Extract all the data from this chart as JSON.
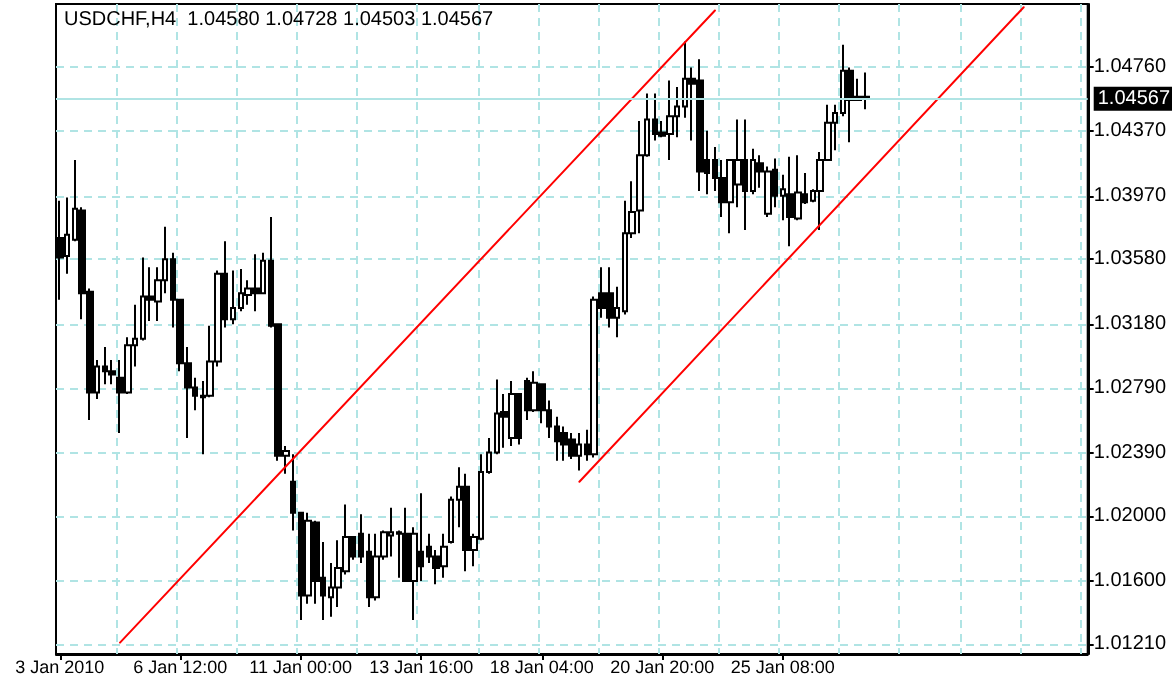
{
  "chart_data": {
    "type": "candlestick",
    "title": "USDCHF,H4  1.04580 1.04728 1.04503 1.04567",
    "categories": [
      "3 Jan 2010",
      null,
      null,
      null,
      null,
      null,
      null,
      null,
      null,
      null,
      null,
      null,
      null,
      null,
      null,
      null,
      "6 Jan 12:00",
      null,
      null,
      null,
      null,
      null,
      null,
      null,
      null,
      null,
      null,
      null,
      null,
      null,
      null,
      null,
      "11 Jan 00:00",
      null,
      null,
      null,
      null,
      null,
      null,
      null,
      null,
      null,
      null,
      null,
      null,
      null,
      null,
      null,
      "13 Jan 16:00",
      null,
      null,
      null,
      null,
      null,
      null,
      null,
      null,
      null,
      null,
      null,
      null,
      null,
      null,
      null,
      "18 Jan 04:00",
      null,
      null,
      null,
      null,
      null,
      null,
      null,
      null,
      null,
      null,
      null,
      null,
      null,
      null,
      null,
      "20 Jan 20:00",
      null,
      null,
      null,
      null,
      null,
      null,
      null,
      null,
      null,
      null,
      null,
      null,
      null,
      null,
      null,
      "25 Jan 08:00",
      null,
      null,
      null,
      null,
      null,
      null,
      null,
      null,
      null,
      null,
      null,
      null,
      null,
      null,
      null,
      null,
      null,
      null,
      null,
      null,
      null,
      null,
      null,
      null,
      null,
      null,
      null,
      null,
      null,
      null,
      null,
      null,
      null,
      null,
      null,
      null,
      null,
      null,
      null,
      null
    ],
    "ohlc": [
      [
        1.0371,
        1.0394,
        1.0333,
        1.0359
      ],
      [
        1.036,
        1.0396,
        1.0349,
        1.0373
      ],
      [
        1.037,
        1.0419,
        1.0369,
        1.0389
      ],
      [
        1.0388,
        1.039,
        1.0321,
        1.0337
      ],
      [
        1.0338,
        1.034,
        1.0259,
        1.0276
      ],
      [
        1.0276,
        1.0296,
        1.0272,
        1.0292
      ],
      [
        1.0292,
        1.0304,
        1.0281,
        1.0289
      ],
      [
        1.0289,
        1.0296,
        1.0281,
        1.0287
      ],
      [
        1.0285,
        1.0296,
        1.0251,
        1.0276
      ],
      [
        1.0276,
        1.031,
        1.0275,
        1.0305
      ],
      [
        1.0305,
        1.033,
        1.0292,
        1.0309
      ],
      [
        1.0309,
        1.0359,
        1.0308,
        1.0335
      ],
      [
        1.0335,
        1.0353,
        1.032,
        1.0333
      ],
      [
        1.0332,
        1.0353,
        1.032,
        1.0345
      ],
      [
        1.0345,
        1.0378,
        1.0337,
        1.0358
      ],
      [
        1.0358,
        1.0362,
        1.0316,
        1.0333
      ],
      [
        1.0333,
        1.0333,
        1.0289,
        1.0294
      ],
      [
        1.0294,
        1.0304,
        1.0248,
        1.0279
      ],
      [
        1.0279,
        1.0285,
        1.0265,
        1.0274
      ],
      [
        1.0274,
        1.0283,
        1.0238,
        1.0273
      ],
      [
        1.0274,
        1.0317,
        1.0273,
        1.0295
      ],
      [
        1.0295,
        1.0351,
        1.0292,
        1.0349
      ],
      [
        1.0349,
        1.0369,
        1.0316,
        1.0321
      ],
      [
        1.0321,
        1.0351,
        1.0318,
        1.0328
      ],
      [
        1.0328,
        1.0352,
        1.0326,
        1.0337
      ],
      [
        1.0336,
        1.0345,
        1.033,
        1.034
      ],
      [
        1.034,
        1.0361,
        1.0326,
        1.0337
      ],
      [
        1.0337,
        1.0362,
        1.0337,
        1.0357
      ],
      [
        1.0357,
        1.0384,
        1.0316,
        1.0317
      ],
      [
        1.0318,
        1.0318,
        1.0234,
        1.0237
      ],
      [
        1.0237,
        1.0243,
        1.0226,
        1.024
      ],
      [
        1.0221,
        1.0238,
        1.0191,
        1.0202
      ],
      [
        1.0202,
        1.0202,
        1.0136,
        1.0151
      ],
      [
        1.0151,
        1.0202,
        1.0146,
        1.0197
      ],
      [
        1.0196,
        1.0197,
        1.0146,
        1.016
      ],
      [
        1.0162,
        1.0184,
        1.0136,
        1.0151
      ],
      [
        1.015,
        1.0171,
        1.0138,
        1.0156
      ],
      [
        1.0156,
        1.0185,
        1.0144,
        1.0168
      ],
      [
        1.0166,
        1.0207,
        1.0164,
        1.0187
      ],
      [
        1.0187,
        1.0187,
        1.0173,
        1.0175
      ],
      [
        1.0189,
        1.0201,
        1.0171,
        1.0175
      ],
      [
        1.0178,
        1.0189,
        1.0144,
        1.015
      ],
      [
        1.015,
        1.0189,
        1.0148,
        1.0175
      ],
      [
        1.0175,
        1.0191,
        1.0173,
        1.019
      ],
      [
        1.0188,
        1.0205,
        1.0175,
        1.019
      ],
      [
        1.0189,
        1.0191,
        1.0162,
        1.019
      ],
      [
        1.0189,
        1.0205,
        1.016,
        1.016
      ],
      [
        1.016,
        1.0193,
        1.0136,
        1.0189
      ],
      [
        1.0178,
        1.0214,
        1.016,
        1.0169
      ],
      [
        1.0181,
        1.0189,
        1.0171,
        1.0175
      ],
      [
        1.0175,
        1.0179,
        1.0158,
        1.0168
      ],
      [
        1.0169,
        1.0189,
        1.0162,
        1.0181
      ],
      [
        1.0184,
        1.0212,
        1.0183,
        1.021
      ],
      [
        1.021,
        1.023,
        1.0193,
        1.0218
      ],
      [
        1.0218,
        1.0226,
        1.0166,
        1.0179
      ],
      [
        1.0179,
        1.0189,
        1.0169,
        1.0187
      ],
      [
        1.0186,
        1.0238,
        1.0185,
        1.0227
      ],
      [
        1.0227,
        1.0248,
        1.0226,
        1.0239
      ],
      [
        1.0239,
        1.0284,
        1.0238,
        1.0263
      ],
      [
        1.0264,
        1.0275,
        1.0242,
        1.0261
      ],
      [
        1.0248,
        1.0283,
        1.0243,
        1.0275
      ],
      [
        1.0275,
        1.0275,
        1.0244,
        1.0248
      ],
      [
        1.0283,
        1.0285,
        1.0259,
        1.0265
      ],
      [
        1.0265,
        1.0289,
        1.0264,
        1.0282
      ],
      [
        1.0281,
        1.0281,
        1.0257,
        1.0265
      ],
      [
        1.0265,
        1.0271,
        1.0248,
        1.0255
      ],
      [
        1.0255,
        1.0261,
        1.0234,
        1.0246
      ],
      [
        1.0251,
        1.0255,
        1.0234,
        1.0244
      ],
      [
        1.0247,
        1.0251,
        1.0235,
        1.0237
      ],
      [
        1.0237,
        1.0251,
        1.0228,
        1.0244
      ],
      [
        1.0244,
        1.0253,
        1.0234,
        1.0238
      ],
      [
        1.0238,
        1.0335,
        1.0236,
        1.0333
      ],
      [
        1.0337,
        1.0353,
        1.0322,
        1.0328
      ],
      [
        1.0337,
        1.0353,
        1.0316,
        1.0322
      ],
      [
        1.0322,
        1.0341,
        1.031,
        1.0328
      ],
      [
        1.0326,
        1.0394,
        1.0324,
        1.0374
      ],
      [
        1.0374,
        1.0406,
        1.0371,
        1.0387
      ],
      [
        1.0388,
        1.0443,
        1.0374,
        1.0422
      ],
      [
        1.0422,
        1.046,
        1.0421,
        1.0444
      ],
      [
        1.0444,
        1.046,
        1.0431,
        1.0435
      ],
      [
        1.0436,
        1.0443,
        1.0433,
        1.0434
      ],
      [
        1.0435,
        1.0468,
        1.0419,
        1.0446
      ],
      [
        1.0446,
        1.0464,
        1.0433,
        1.0452
      ],
      [
        1.0452,
        1.0492,
        1.0445,
        1.0469
      ],
      [
        1.0469,
        1.0476,
        1.0431,
        1.0466
      ],
      [
        1.0468,
        1.0481,
        1.04,
        1.0412
      ],
      [
        1.0419,
        1.0437,
        1.0398,
        1.0411
      ],
      [
        1.0419,
        1.0427,
        1.04,
        1.0408
      ],
      [
        1.0408,
        1.0419,
        1.0384,
        1.0393
      ],
      [
        1.0393,
        1.0419,
        1.0374,
        1.0419
      ],
      [
        1.0404,
        1.0444,
        1.039,
        1.0419
      ],
      [
        1.0419,
        1.0444,
        1.0376,
        1.04
      ],
      [
        1.04,
        1.0426,
        1.0398,
        1.0419
      ],
      [
        1.0417,
        1.0422,
        1.0402,
        1.0412
      ],
      [
        1.0386,
        1.0415,
        1.0384,
        1.0412
      ],
      [
        1.0413,
        1.042,
        1.039,
        1.0397
      ],
      [
        1.0397,
        1.041,
        1.0382,
        1.0401
      ],
      [
        1.0398,
        1.0421,
        1.0366,
        1.0384
      ],
      [
        1.0383,
        1.0422,
        1.0382,
        1.0399
      ],
      [
        1.0398,
        1.0411,
        1.0392,
        1.0393
      ],
      [
        1.0394,
        1.0401,
        1.0393,
        1.04
      ],
      [
        1.04,
        1.0424,
        1.0376,
        1.0419
      ],
      [
        1.0419,
        1.0453,
        1.0419,
        1.0442
      ],
      [
        1.0442,
        1.0453,
        1.0425,
        1.0448
      ],
      [
        1.0448,
        1.049,
        1.0446,
        1.0474
      ],
      [
        1.0474,
        1.0476,
        1.043,
        1.0456
      ],
      [
        1.0458,
        1.0469,
        1.0456,
        1.0456
      ],
      [
        1.0458,
        1.04728,
        1.04503,
        1.04567
      ],
      null,
      null,
      null,
      null,
      null,
      null,
      null,
      null,
      null,
      null,
      null,
      null,
      null,
      null,
      null,
      null,
      null,
      null,
      null,
      null,
      null,
      null,
      null,
      null,
      null,
      null,
      null,
      null,
      null
    ],
    "series": [
      {
        "type": "line",
        "color": "#ff0000",
        "values": [
          null,
          null,
          null,
          null,
          null,
          null,
          null,
          null,
          1.0122,
          null,
          null,
          null,
          null,
          null,
          null,
          null,
          null,
          null,
          null,
          null,
          null,
          null,
          null,
          null,
          null,
          null,
          null,
          null,
          null,
          null,
          null,
          null,
          null,
          null,
          null,
          null,
          null,
          null,
          null,
          null,
          null,
          null,
          null,
          null,
          null,
          null,
          null,
          null,
          null,
          null,
          null,
          null,
          null,
          null,
          null,
          null,
          null,
          null,
          null,
          null,
          null,
          null,
          null,
          null,
          null,
          null,
          null,
          null,
          null,
          null,
          null,
          null,
          null,
          null,
          null,
          null,
          null,
          null,
          null,
          null,
          null,
          null,
          null,
          null,
          null,
          null,
          null,
          1.0511,
          null,
          null,
          null,
          null,
          null,
          null,
          null,
          null,
          null,
          null,
          null,
          null,
          null,
          null,
          null,
          null,
          null,
          null,
          null,
          null,
          null,
          null,
          null,
          null,
          null,
          null,
          null,
          null,
          null,
          null,
          null,
          null,
          null,
          null,
          null,
          null,
          null,
          null,
          null,
          null,
          null,
          null,
          null,
          null,
          null,
          null,
          null,
          null,
          null
        ]
      },
      {
        "type": "line",
        "color": "#ff0000",
        "values": [
          null,
          null,
          null,
          null,
          null,
          null,
          null,
          null,
          null,
          null,
          null,
          null,
          null,
          null,
          null,
          null,
          null,
          null,
          null,
          null,
          null,
          null,
          null,
          null,
          null,
          null,
          null,
          null,
          null,
          null,
          null,
          null,
          null,
          null,
          null,
          null,
          null,
          null,
          null,
          null,
          null,
          null,
          null,
          null,
          null,
          null,
          null,
          null,
          null,
          null,
          null,
          null,
          null,
          null,
          null,
          null,
          null,
          null,
          null,
          null,
          null,
          null,
          null,
          null,
          null,
          null,
          null,
          null,
          null,
          1.0221,
          null,
          null,
          null,
          null,
          null,
          null,
          null,
          null,
          null,
          null,
          null,
          null,
          null,
          null,
          null,
          null,
          null,
          null,
          null,
          null,
          null,
          null,
          null,
          null,
          null,
          null,
          null,
          null,
          null,
          null,
          null,
          null,
          null,
          null,
          null,
          null,
          null,
          null,
          null,
          null,
          null,
          null,
          null,
          null,
          null,
          null,
          null,
          null,
          null,
          null,
          null,
          null,
          null,
          null,
          null,
          null,
          null,
          null,
          1.0513,
          null,
          null,
          null,
          null,
          null,
          null,
          null,
          null
        ]
      }
    ],
    "ylim": [
      1.0115,
      1.0515
    ],
    "yticks": [
      {
        "value": 1.0121,
        "label": "1.01210"
      },
      {
        "value": 1.016,
        "label": "1.01600"
      },
      {
        "value": 1.02,
        "label": "1.02000"
      },
      {
        "value": 1.0239,
        "label": "1.02390"
      },
      {
        "value": 1.0279,
        "label": "1.02790"
      },
      {
        "value": 1.0318,
        "label": "1.03180"
      },
      {
        "value": 1.0358,
        "label": "1.03580"
      },
      {
        "value": 1.0397,
        "label": "1.03970"
      },
      {
        "value": 1.0437,
        "label": "1.04370"
      },
      {
        "value": 1.0476,
        "label": "1.04760"
      }
    ],
    "ref_lines": [
      {
        "axis": "y",
        "value": 1.04567,
        "label": "1.04567",
        "color": "#b0e4e4"
      }
    ],
    "grid": true
  }
}
